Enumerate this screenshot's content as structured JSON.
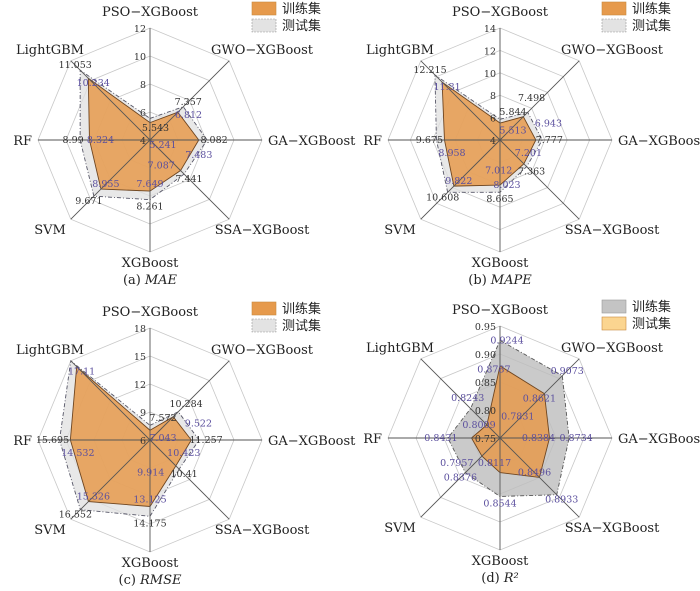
{
  "chart_data": [
    {
      "type": "radar",
      "panel": "(a)",
      "metric": "MAE",
      "axes": [
        "PSO−XGBoost",
        "GWO−XGBoost",
        "GA−XGBoost",
        "SSA−XGBoost",
        "XGBoost",
        "SVM",
        "RF",
        "LightGBM"
      ],
      "range": [
        4,
        12
      ],
      "ticks": [
        "4",
        "6",
        "8",
        "10",
        "12"
      ],
      "legend": "top-right",
      "series": [
        {
          "name": "测试集",
          "color": "#e3e3e3",
          "labels": [
            "5.543",
            "7.357",
            "8.082",
            "7.441",
            "8.261",
            "9.671",
            "8.99",
            "11.053"
          ],
          "values": [
            5.543,
            7.357,
            8.082,
            7.441,
            8.261,
            9.671,
            8.99,
            11.053
          ]
        },
        {
          "name": "训练集",
          "color": "#e69a4c",
          "labels": [
            "5.241",
            "6.812",
            "7.483",
            "7.087",
            "7.649",
            "8.955",
            "8.324",
            "10.234"
          ],
          "values": [
            5.241,
            6.812,
            7.483,
            7.087,
            7.649,
            8.955,
            8.324,
            10.234
          ]
        }
      ],
      "legend_order": [
        "训练集",
        "测试集"
      ]
    },
    {
      "type": "radar",
      "panel": "(b)",
      "metric": "MAPE",
      "axes": [
        "PSO−XGBoost",
        "GWO−XGBoost",
        "GA−XGBoost",
        "SSA−XGBoost",
        "XGBoost",
        "SVM",
        "RF",
        "LightGBM"
      ],
      "range": [
        4,
        14
      ],
      "ticks": [
        "4",
        "6",
        "8",
        "10",
        "12",
        "14"
      ],
      "legend": "top-right",
      "series": [
        {
          "name": "测试集",
          "color": "#e3e3e3",
          "labels": [
            "5.844",
            "7.498",
            "7.777",
            "7.363",
            "8.665",
            "10.608",
            "9.675",
            "12.215"
          ],
          "values": [
            5.844,
            7.498,
            7.777,
            7.363,
            8.665,
            10.608,
            9.675,
            12.215
          ]
        },
        {
          "name": "训练集",
          "color": "#e69a4c",
          "labels": [
            "5.513",
            "6.943",
            "7.201",
            "7.012",
            "8.023",
            "9.822",
            "8.958",
            "11.31"
          ],
          "values": [
            5.513,
            6.943,
            7.201,
            7.012,
            8.023,
            9.822,
            8.958,
            11.31
          ]
        }
      ],
      "legend_order": [
        "训练集",
        "测试集"
      ]
    },
    {
      "type": "radar",
      "panel": "(c)",
      "metric": "RMSE",
      "axes": [
        "PSO−XGBoost",
        "GWO−XGBoost",
        "GA−XGBoost",
        "SSA−XGBoost",
        "XGBoost",
        "SVM",
        "RF",
        "LightGBM"
      ],
      "range": [
        6,
        18
      ],
      "ticks": [
        "6",
        "9",
        "12",
        "15",
        "18"
      ],
      "legend": "top-right",
      "series": [
        {
          "name": "测试集",
          "color": "#e3e3e3",
          "labels": [
            "7.572",
            "10.284",
            "11.257",
            "10.41",
            "14.175",
            "16.552",
            "15.695",
            null
          ],
          "values": [
            7.572,
            10.284,
            11.257,
            10.41,
            14.175,
            16.552,
            15.695,
            18.0
          ]
        },
        {
          "name": "训练集",
          "color": "#e69a4c",
          "labels": [
            "7.043",
            "9.522",
            "10.423",
            "9.914",
            "13.125",
            "15.326",
            "14.532",
            "17.11"
          ],
          "values": [
            7.043,
            9.522,
            10.423,
            9.914,
            13.125,
            15.326,
            14.532,
            17.11
          ]
        }
      ],
      "legend_order": [
        "训练集",
        "测试集"
      ]
    },
    {
      "type": "radar",
      "panel": "(d)",
      "metric": "R²",
      "axes": [
        "PSO−XGBoost",
        "GWO−XGBoost",
        "GA−XGBoost",
        "SSA−XGBoost",
        "XGBoost",
        "SVM",
        "RF",
        "LightGBM"
      ],
      "range": [
        0.75,
        0.95
      ],
      "ticks": [
        "0.75",
        "0.80",
        "0.85",
        "0.90",
        "0.95"
      ],
      "legend": "top-right",
      "series": [
        {
          "name": "训练集",
          "color": "#c4c4c4",
          "labels": [
            "0.9244",
            "0.9073",
            "0.8734",
            "0.8933",
            "0.8544",
            "0.8376",
            "0.8431",
            "0.8243"
          ],
          "values": [
            0.9244,
            0.9073,
            0.8734,
            0.8933,
            0.8544,
            0.8376,
            0.8431,
            0.8243
          ]
        },
        {
          "name": "测试集",
          "color": "#fbd590",
          "labels": [
            "0.8787",
            "0.8621",
            "0.8384",
            "0.8496",
            "0.8117",
            "0.7957",
            "0.8009",
            "0.7831"
          ],
          "values": [
            0.8787,
            0.8621,
            0.8384,
            0.8496,
            0.8117,
            0.7957,
            0.8009,
            0.7831
          ]
        }
      ],
      "legend_order": [
        "训练集",
        "测试集"
      ]
    }
  ]
}
